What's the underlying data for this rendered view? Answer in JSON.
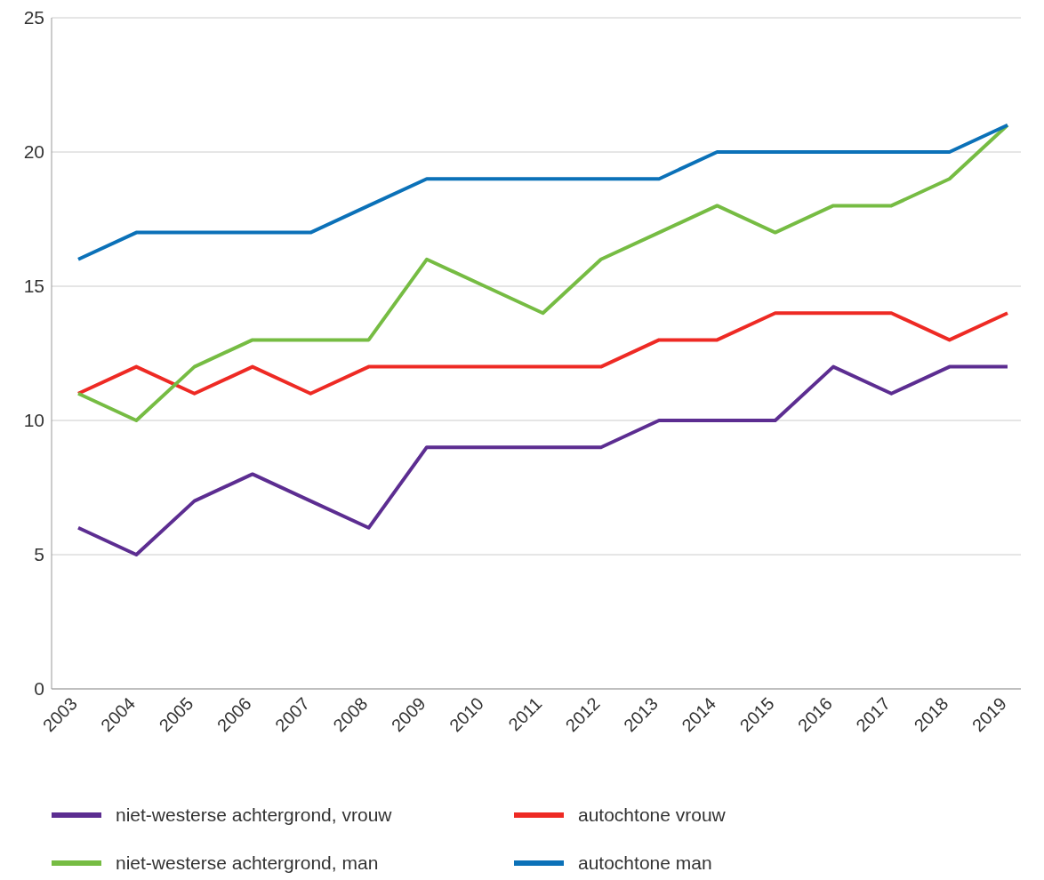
{
  "chart_data": {
    "type": "line",
    "categories": [
      "2003",
      "2004",
      "2005",
      "2006",
      "2007",
      "2008",
      "2009",
      "2010",
      "2011",
      "2012",
      "2013",
      "2014",
      "2015",
      "2016",
      "2017",
      "2018",
      "2019"
    ],
    "series": [
      {
        "name": "niet-westerse achtergrond, vrouw",
        "color": "#5c2d91",
        "values": [
          6,
          5,
          7,
          8,
          7,
          6,
          9,
          9,
          9,
          9,
          10,
          10,
          10,
          12,
          11,
          12,
          12
        ]
      },
      {
        "name": "autochtone vrouw",
        "color": "#ee2a24",
        "values": [
          11,
          12,
          11,
          12,
          11,
          12,
          12,
          12,
          12,
          12,
          13,
          13,
          14,
          14,
          14,
          13,
          14
        ]
      },
      {
        "name": "niet-westerse achtergrond, man",
        "color": "#76bc43",
        "values": [
          11,
          10,
          12,
          13,
          13,
          13,
          16,
          15,
          14,
          16,
          17,
          18,
          17,
          18,
          18,
          19,
          21
        ]
      },
      {
        "name": "autochtone man",
        "color": "#0b71b8",
        "values": [
          16,
          17,
          17,
          17,
          17,
          18,
          19,
          19,
          19,
          19,
          19,
          20,
          20,
          20,
          20,
          20,
          21
        ]
      }
    ],
    "ylim": [
      0,
      25
    ],
    "yticks": [
      0,
      5,
      10,
      15,
      20,
      25
    ],
    "grid": "y",
    "legend": "bottom",
    "marker": "none",
    "line_style": "solid"
  }
}
